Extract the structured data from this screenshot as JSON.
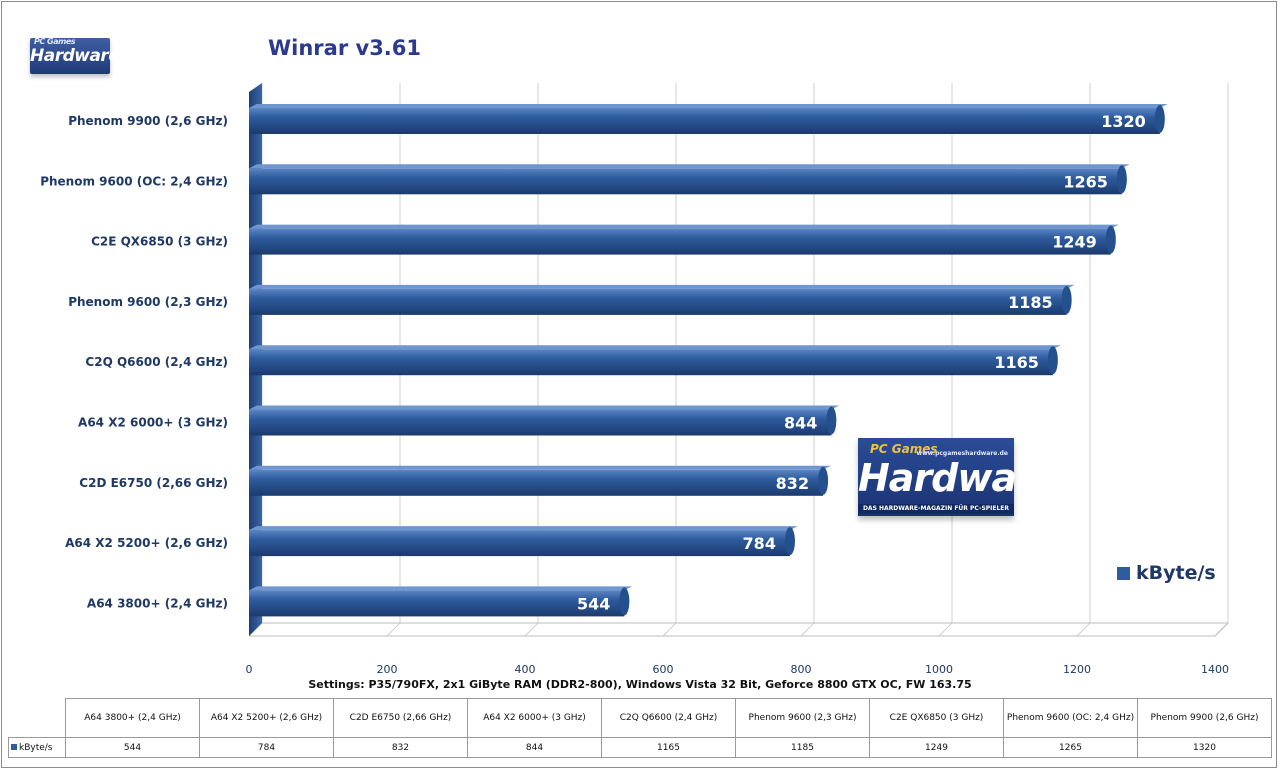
{
  "title": "Winrar v3.61",
  "settings_note": "Settings: P35/790FX, 2x1 GiByte RAM (DDR2-800), Windows Vista 32 Bit, Geforce 8800 GTX OC, FW 163.75",
  "logo": {
    "small_text": "Hardware",
    "small_pc": "PC Games",
    "big_pc": "PC Games",
    "big_word": "Hardware",
    "big_url": "www.pcgameshardware.de",
    "big_tag": "DAS HARDWARE-MAGAZIN FÜR PC-SPIELER"
  },
  "legend": {
    "label": "kByte/s"
  },
  "colors": {
    "bar": "#2e5c9e",
    "bar_dark": "#1f3f73",
    "grid": "#d0d0d0"
  },
  "chart_data": {
    "type": "bar",
    "orientation": "horizontal",
    "categories": [
      "Phenom 9900  (2,6 GHz)",
      "Phenom 9600  (OC: 2,4 GHz)",
      "C2E QX6850  (3 GHz)",
      "Phenom 9600  (2,3 GHz)",
      "C2Q Q6600  (2,4 GHz)",
      "A64 X2 6000+  (3 GHz)",
      "C2D E6750  (2,66 GHz)",
      "A64 X2 5200+  (2,6 GHz)",
      "A64 3800+  (2,4 GHz)"
    ],
    "series": [
      {
        "name": "kByte/s",
        "values": [
          1320,
          1265,
          1249,
          1185,
          1165,
          844,
          832,
          784,
          544
        ]
      }
    ],
    "xlim": [
      0,
      1400
    ],
    "xticks": [
      0,
      200,
      400,
      600,
      800,
      1000,
      1200,
      1400
    ],
    "grid": true,
    "legend_position": "right"
  },
  "table": {
    "row_label": "kByte/s",
    "headers": [
      "A64 3800+ (2,4 GHz)",
      "A64 X2 5200+ (2,6 GHz)",
      "C2D E6750 (2,66 GHz)",
      "A64 X2 6000+ (3 GHz)",
      "C2Q Q6600 (2,4 GHz)",
      "Phenom 9600 (2,3 GHz)",
      "C2E QX6850 (3 GHz)",
      "Phenom 9600 (OC: 2,4 GHz)",
      "Phenom 9900 (2,6 GHz)"
    ],
    "values": [
      "544",
      "784",
      "832",
      "844",
      "1165",
      "1185",
      "1249",
      "1265",
      "1320"
    ]
  }
}
